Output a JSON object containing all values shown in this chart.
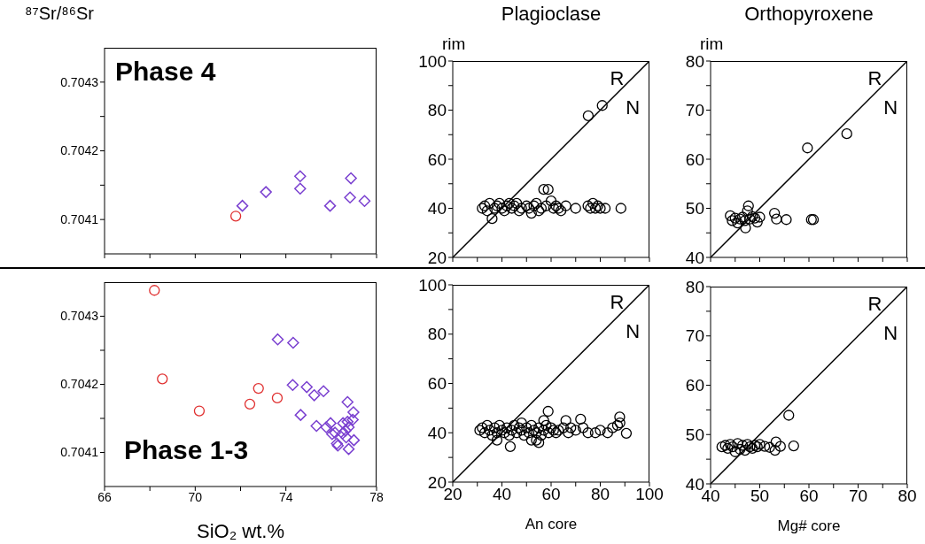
{
  "chart_data": [
    {
      "type": "scatter",
      "ylabel": "⁸⁷Sr/⁸⁶Sr",
      "annotations": [
        "Phase 4"
      ],
      "xlim": [
        66,
        78
      ],
      "ylim": [
        0.70405,
        0.70435
      ],
      "xticks": [
        66,
        {
          "value": 68,
          "label": null
        },
        70,
        {
          "value": 72,
          "label": null
        },
        74,
        {
          "value": 76,
          "label": null
        },
        78
      ],
      "yticks": [
        0.7041,
        {
          "value": 0.70415,
          "label": null
        },
        0.7042,
        {
          "value": 0.70425,
          "label": null
        },
        0.7043
      ],
      "tick_labels": "y",
      "series": [
        {
          "color": "#e03030",
          "marker": "circle",
          "x": [
            71.79
          ],
          "values": [
            0.704105
          ]
        },
        {
          "color": "#7a40d0",
          "marker": "diamond",
          "x": [
            72.08,
            73.12,
            74.63,
            74.63,
            75.95,
            76.87,
            76.83,
            77.47
          ],
          "values": [
            0.70412,
            0.70414,
            0.704163,
            0.704145,
            0.70412,
            0.70416,
            0.704132,
            0.704127
          ]
        }
      ]
    },
    {
      "type": "scatter",
      "title": "Plagioclase",
      "ylabel": "rim",
      "annotations": [
        "R",
        "N"
      ],
      "xlim": [
        20,
        100
      ],
      "ylim": [
        20,
        100
      ],
      "xticks": [
        20,
        {
          "value": 30,
          "label": null
        },
        40,
        {
          "value": 50,
          "label": null
        },
        60,
        {
          "value": 70,
          "label": null
        },
        80,
        {
          "value": 90,
          "label": null
        },
        100
      ],
      "yticks": [
        20,
        {
          "value": 30,
          "label": null
        },
        40,
        {
          "value": 50,
          "label": null
        },
        60,
        {
          "value": 70,
          "label": null
        },
        80,
        {
          "value": 90,
          "label": null
        },
        100
      ],
      "tick_labels": "y",
      "series": [
        {
          "color": "#000000",
          "marker": "circle",
          "x": [
            75.1,
            80.8,
            32,
            33,
            34,
            35,
            36,
            37,
            38,
            39,
            40,
            41,
            42,
            43,
            44,
            45,
            46,
            47,
            48,
            50,
            51,
            52,
            53,
            54,
            55,
            56,
            57,
            58.8,
            58,
            60,
            61,
            62,
            63,
            64,
            66,
            70,
            75,
            76,
            77,
            78,
            79,
            80,
            82,
            88.4
          ],
          "values": [
            77.7,
            81.9,
            40,
            41,
            39,
            42,
            35.8,
            40,
            41,
            42,
            40,
            39,
            41,
            42,
            40,
            41,
            42,
            39,
            40,
            41,
            40,
            38,
            41,
            42,
            39,
            40,
            47.7,
            47.7,
            41,
            43,
            40,
            41,
            40,
            39,
            41,
            40,
            41,
            40,
            42,
            40,
            41,
            40,
            40,
            40
          ]
        },
        {
          "type": "line",
          "color": "#000000",
          "x": [
            20,
            100
          ],
          "values": [
            20,
            100
          ]
        }
      ]
    },
    {
      "type": "scatter",
      "title": "Orthopyroxene",
      "ylabel": "rim",
      "annotations": [
        "R",
        "N"
      ],
      "xlim": [
        40,
        80
      ],
      "ylim": [
        40,
        80
      ],
      "xticks": [
        40,
        {
          "value": 45,
          "label": null
        },
        50,
        {
          "value": 55,
          "label": null
        },
        60,
        {
          "value": 65,
          "label": null
        },
        70,
        {
          "value": 75,
          "label": null
        },
        80
      ],
      "yticks": [
        40,
        {
          "value": 45,
          "label": null
        },
        50,
        {
          "value": 55,
          "label": null
        },
        60,
        {
          "value": 65,
          "label": null
        },
        70,
        {
          "value": 75,
          "label": null
        },
        80
      ],
      "tick_labels": "y",
      "series": [
        {
          "color": "#000000",
          "marker": "circle",
          "x": [
            59.7,
            67.7,
            44,
            44.4,
            45,
            45.5,
            46,
            46.5,
            47,
            47.1,
            47.7,
            47.5,
            48,
            48.5,
            49,
            49.5,
            50,
            53,
            53.4,
            55.4,
            60.5,
            60.9
          ],
          "values": [
            62.3,
            65.2,
            48.5,
            47.5,
            48,
            47,
            47.8,
            48.2,
            47.5,
            46,
            50.5,
            49.5,
            47.8,
            48.3,
            48,
            47.2,
            48.2,
            49,
            47.8,
            47.7,
            47.7,
            47.7
          ]
        },
        {
          "type": "line",
          "color": "#000000",
          "x": [
            40,
            80
          ],
          "values": [
            40,
            80
          ]
        }
      ]
    },
    {
      "type": "scatter",
      "xlabel": "SiO₂ wt.%",
      "annotations": [
        "Phase 1-3"
      ],
      "xlim": [
        66,
        78
      ],
      "ylim": [
        0.70405,
        0.70435
      ],
      "xticks": [
        66,
        {
          "value": 68,
          "label": null
        },
        70,
        {
          "value": 72,
          "label": null
        },
        74,
        {
          "value": 76,
          "label": null
        },
        78
      ],
      "yticks": [
        0.7041,
        {
          "value": 0.70415,
          "label": null
        },
        0.7042,
        {
          "value": 0.70425,
          "label": null
        },
        0.7043
      ],
      "series": [
        {
          "color": "#e03030",
          "marker": "circle",
          "x": [
            68.2,
            68.55,
            70.18,
            72.41,
            72.79,
            73.62
          ],
          "values": [
            0.704338,
            0.704208,
            0.704161,
            0.704171,
            0.704194,
            0.70418
          ]
        },
        {
          "color": "#7a40d0",
          "marker": "diamond",
          "x": [
            73.64,
            74.32,
            74.3,
            74.92,
            75.25,
            75.66,
            74.65,
            75.35,
            75.78,
            75.97,
            76.04,
            76.25,
            76.29,
            76.77,
            77.0,
            76.72,
            76.98,
            76.95,
            76.5,
            76.63,
            76.66,
            76.72,
            76.17,
            76.77,
            76.52
          ],
          "values": [
            0.704266,
            0.704261,
            0.704199,
            0.704196,
            0.704184,
            0.70419,
            0.704155,
            0.704139,
            0.704137,
            0.704143,
            0.704127,
            0.704113,
            0.70411,
            0.704105,
            0.704118,
            0.704174,
            0.704159,
            0.704148,
            0.704128,
            0.704132,
            0.704122,
            0.704145,
            0.704129,
            0.704137,
            0.704143
          ]
        }
      ]
    },
    {
      "type": "scatter",
      "xlabel": "An core",
      "annotations": [
        "R",
        "N"
      ],
      "xlim": [
        20,
        100
      ],
      "ylim": [
        20,
        100
      ],
      "xticks": [
        20,
        {
          "value": 30,
          "label": null
        },
        40,
        {
          "value": 50,
          "label": null
        },
        60,
        {
          "value": 70,
          "label": null
        },
        80,
        {
          "value": 90,
          "label": null
        },
        100
      ],
      "yticks": [
        20,
        {
          "value": 30,
          "label": null
        },
        40,
        {
          "value": 50,
          "label": null
        },
        60,
        {
          "value": 70,
          "label": null
        },
        80,
        {
          "value": 90,
          "label": null
        },
        100
      ],
      "series": [
        {
          "color": "#000000",
          "marker": "circle",
          "x": [
            31,
            32,
            33,
            34,
            35,
            36,
            37,
            38,
            39,
            40,
            41,
            42,
            43,
            44,
            45,
            46,
            47,
            48,
            49,
            50,
            51,
            52,
            53,
            54,
            55,
            56,
            57,
            58,
            59,
            60,
            61,
            62,
            63,
            65,
            66,
            67,
            68,
            70,
            72,
            73,
            75,
            78,
            80,
            83,
            85,
            87,
            87.9,
            88,
            90.6,
            58.8,
            43.4,
            55,
            52,
            54,
            57,
            48,
            38
          ],
          "values": [
            41,
            42,
            40,
            43,
            41,
            39,
            42,
            40,
            43,
            41,
            40,
            42,
            39,
            41,
            43,
            40,
            42,
            41,
            39,
            42,
            40,
            43,
            41,
            40,
            42,
            39,
            41,
            43,
            40,
            42,
            41,
            40,
            41,
            42,
            45,
            40,
            42,
            41,
            45.5,
            42,
            40,
            40,
            41,
            40,
            42,
            43,
            46.4,
            44,
            39.8,
            48.7,
            34.4,
            36,
            37,
            37,
            45,
            44,
            37
          ]
        },
        {
          "type": "line",
          "color": "#000000",
          "x": [
            20,
            100
          ],
          "values": [
            20,
            100
          ]
        }
      ]
    },
    {
      "type": "scatter",
      "xlabel": "Mg# core",
      "annotations": [
        "R",
        "N"
      ],
      "xlim": [
        40,
        80
      ],
      "ylim": [
        40,
        80
      ],
      "xticks": [
        40,
        {
          "value": 45,
          "label": null
        },
        50,
        {
          "value": 55,
          "label": null
        },
        60,
        {
          "value": 65,
          "label": null
        },
        70,
        {
          "value": 75,
          "label": null
        },
        80
      ],
      "yticks": [
        40,
        {
          "value": 45,
          "label": null
        },
        50,
        {
          "value": 55,
          "label": null
        },
        60,
        {
          "value": 65,
          "label": null
        },
        70,
        {
          "value": 75,
          "label": null
        },
        80
      ],
      "series": [
        {
          "color": "#000000",
          "marker": "circle",
          "x": [
            42.3,
            43,
            43.5,
            44,
            44.5,
            45,
            45.5,
            46,
            46.5,
            47,
            47.5,
            48,
            48.5,
            49,
            49.5,
            50,
            51,
            52,
            55.9,
            56.9,
            53.1,
            53.3,
            54.2
          ],
          "values": [
            47.5,
            47.8,
            47.2,
            48,
            47.5,
            46.5,
            48.2,
            47,
            47.8,
            46.8,
            48,
            47.5,
            47.2,
            47.8,
            47.5,
            48,
            47.6,
            47.4,
            53.9,
            47.7,
            46.8,
            48.5,
            47.6
          ]
        },
        {
          "type": "line",
          "color": "#000000",
          "x": [
            40,
            80
          ],
          "values": [
            40,
            80
          ]
        }
      ]
    }
  ]
}
